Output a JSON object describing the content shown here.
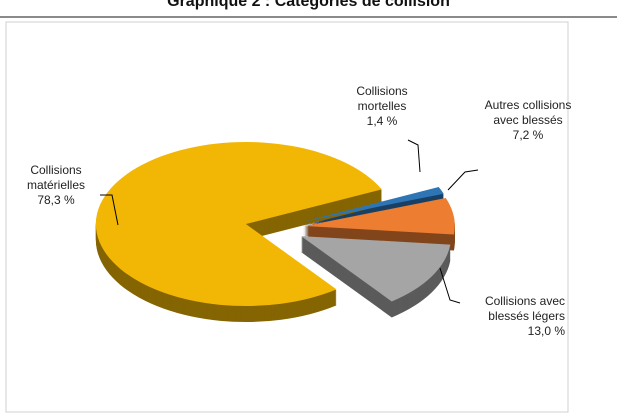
{
  "chart_data": {
    "type": "pie",
    "title": "Graphique 2 : Catégories de collision",
    "categories": [
      "Collisions mortelles",
      "Autres collisions avec blessés",
      "Collisions avec blessés légers",
      "Collisions matérielles"
    ],
    "values": [
      1.4,
      7.2,
      13.0,
      78.3
    ],
    "value_labels": [
      "1,4 %",
      "7,2 %",
      "13,0 %",
      "78,3 %"
    ],
    "colors": [
      "#2e75b6",
      "#ed7d31",
      "#a5a5a5",
      "#f2b705"
    ]
  }
}
